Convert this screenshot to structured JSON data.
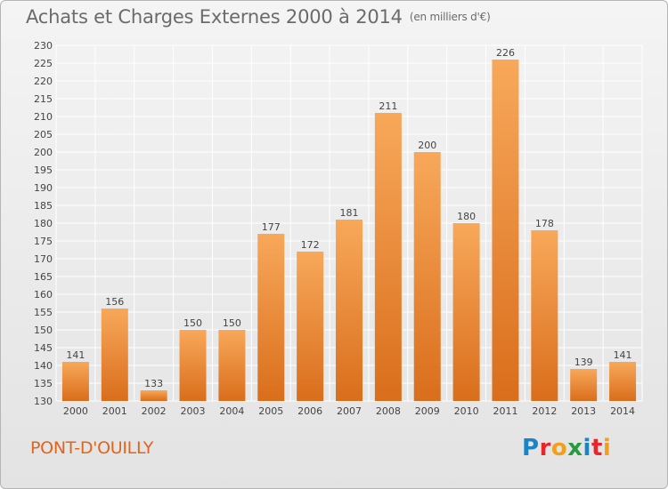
{
  "header": {
    "title": "Achats et Charges Externes 2000 à 2014",
    "subtitle": "(en milliers d'€)"
  },
  "footer": {
    "place": "PONT-D'OUILLY",
    "brand": "Proxiti",
    "brand_letters": [
      {
        "ch": "P",
        "color": "#1a84c6"
      },
      {
        "ch": "r",
        "color": "#e8262a"
      },
      {
        "ch": "o",
        "color": "#f2a01b"
      },
      {
        "ch": "x",
        "color": "#2a9a3f"
      },
      {
        "ch": "i",
        "color": "#1a84c6"
      },
      {
        "ch": "t",
        "color": "#e8262a"
      },
      {
        "ch": "i",
        "color": "#f2a01b"
      }
    ]
  },
  "colors": {
    "bar_light": "#f8a85a",
    "bar_dark": "#d96e1c",
    "grid": "#ffffff",
    "axis_text": "#444444",
    "place_text": "#e0651b"
  },
  "chart_data": {
    "type": "bar",
    "categories": [
      "2000",
      "2001",
      "2002",
      "2003",
      "2004",
      "2005",
      "2006",
      "2007",
      "2008",
      "2009",
      "2010",
      "2011",
      "2012",
      "2013",
      "2014"
    ],
    "values": [
      141,
      156,
      133,
      150,
      150,
      177,
      172,
      181,
      211,
      200,
      180,
      226,
      178,
      139,
      141
    ],
    "title": "Achats et Charges Externes 2000 à 2014",
    "subtitle": "(en milliers d'€)",
    "xlabel": "",
    "ylabel": "",
    "ylim": [
      130,
      230
    ],
    "ytick_step": 5,
    "grid": true,
    "data_labels": true
  }
}
